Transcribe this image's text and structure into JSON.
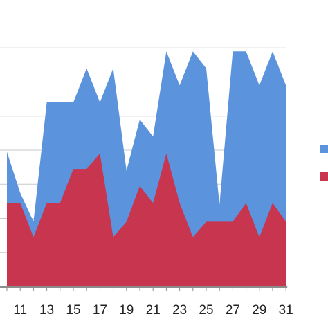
{
  "chart_data": {
    "type": "area",
    "stacked": false,
    "x": [
      10,
      11,
      12,
      13,
      14,
      15,
      16,
      17,
      18,
      19,
      20,
      21,
      22,
      23,
      24,
      25,
      26,
      27,
      28,
      29,
      30,
      31
    ],
    "x_tick_labels": [
      "11",
      "13",
      "15",
      "17",
      "19",
      "21",
      "23",
      "25",
      "27",
      "29",
      "31"
    ],
    "x_tick_values": [
      11,
      13,
      15,
      17,
      19,
      21,
      23,
      25,
      27,
      29,
      31
    ],
    "series": [
      {
        "color": "#5b93dd",
        "values": [
          7.9,
          5.5,
          3.8,
          10.8,
          10.8,
          10.8,
          12.8,
          10.8,
          12.8,
          6.8,
          9.8,
          8.8,
          13.8,
          11.8,
          13.8,
          12.8,
          4.8,
          13.8,
          13.8,
          11.8,
          13.8,
          11.8
        ]
      },
      {
        "color": "#c8354f",
        "values": [
          4.9,
          4.9,
          2.9,
          4.9,
          4.9,
          6.9,
          6.9,
          7.8,
          2.9,
          3.8,
          5.9,
          4.9,
          7.8,
          4.9,
          2.9,
          3.8,
          3.8,
          3.8,
          4.9,
          2.9,
          4.9,
          3.8
        ]
      }
    ],
    "ylim": [
      0,
      16
    ],
    "grid": true,
    "legend_position": "right"
  }
}
